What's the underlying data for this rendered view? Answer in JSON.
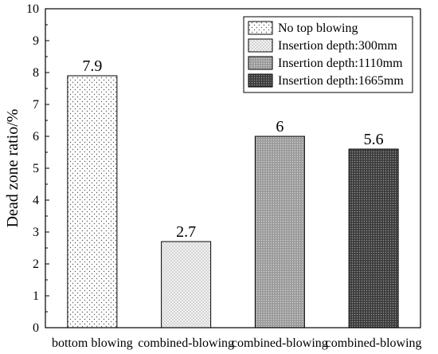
{
  "chart_data": {
    "type": "bar",
    "title": "",
    "xlabel": "",
    "ylabel": "Dead zone ratio/%",
    "ylim": [
      0,
      10
    ],
    "yticks": [
      0,
      1,
      2,
      3,
      4,
      5,
      6,
      7,
      8,
      9,
      10
    ],
    "categories": [
      "bottom blowing",
      "combined-blowing",
      "combined-blowing",
      "combined-blowing"
    ],
    "values": [
      7.9,
      2.7,
      6,
      5.6
    ],
    "value_labels": [
      "7.9",
      "2.7",
      "6",
      "5.6"
    ],
    "series": [
      {
        "name": "No top blowing",
        "values": [
          7.9,
          null,
          null,
          null
        ],
        "pattern": "sparse-dots"
      },
      {
        "name": "Insertion depth:300mm",
        "values": [
          null,
          2.7,
          null,
          null
        ],
        "pattern": "fine-dots"
      },
      {
        "name": "Insertion depth:1110mm",
        "values": [
          null,
          null,
          6,
          null
        ],
        "pattern": "medium-gray-dots"
      },
      {
        "name": "Insertion depth:1665mm",
        "values": [
          null,
          null,
          null,
          5.6
        ],
        "pattern": "dark-gray-dots"
      }
    ],
    "legend_position": "top-right",
    "grid": false
  }
}
